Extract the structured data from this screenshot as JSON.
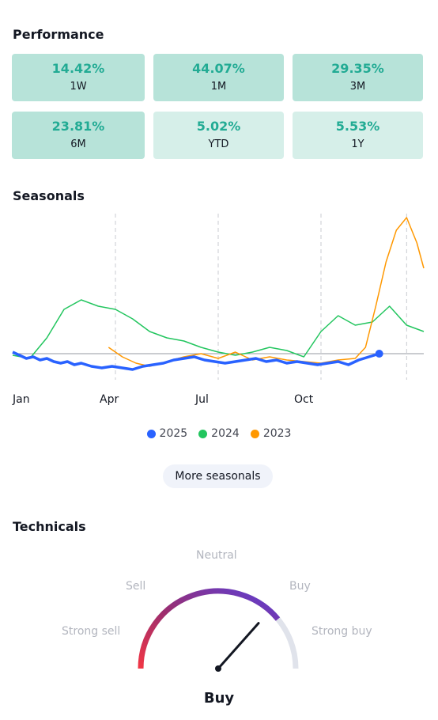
{
  "performance": {
    "title": "Performance",
    "cards": [
      {
        "value": "14.42%",
        "label": "1W",
        "tone": "dark"
      },
      {
        "value": "44.07%",
        "label": "1M",
        "tone": "dark"
      },
      {
        "value": "29.35%",
        "label": "3M",
        "tone": "dark"
      },
      {
        "value": "23.81%",
        "label": "6M",
        "tone": "dark"
      },
      {
        "value": "5.02%",
        "label": "YTD",
        "tone": "light"
      },
      {
        "value": "5.53%",
        "label": "1Y",
        "tone": "light"
      }
    ]
  },
  "seasonals": {
    "title": "Seasonals",
    "more_button": "More seasonals",
    "months": [
      "Jan",
      "Apr",
      "Jul",
      "Oct"
    ]
  },
  "chart_data": {
    "type": "line",
    "title": "",
    "xlabel": "",
    "ylabel": "",
    "x_ticks": [
      "Jan",
      "Apr",
      "Jul",
      "Oct"
    ],
    "grid": "vertical dashed at quarter boundaries",
    "baseline": 0,
    "series": [
      {
        "name": "2025",
        "color": "#2962ff",
        "x": [
          0,
          0.2,
          0.4,
          0.6,
          0.8,
          1.0,
          1.2,
          1.4,
          1.6,
          1.8,
          2.0,
          2.3,
          2.6,
          2.9,
          3.2,
          3.5,
          3.8,
          4.1,
          4.4,
          4.7,
          5.0,
          5.3,
          5.6,
          5.9,
          6.2,
          6.5,
          6.8,
          7.1,
          7.4,
          7.7,
          8.0,
          8.3,
          8.6,
          8.9,
          9.2,
          9.5,
          9.8,
          10.1,
          10.4,
          10.7
        ],
        "y": [
          1,
          -1,
          -3,
          -2,
          -4,
          -3,
          -5,
          -6,
          -5,
          -7,
          -6,
          -8,
          -9,
          -8,
          -9,
          -10,
          -8,
          -7,
          -6,
          -4,
          -3,
          -2,
          -4,
          -5,
          -6,
          -5,
          -4,
          -3,
          -5,
          -4,
          -6,
          -5,
          -6,
          -7,
          -6,
          -5,
          -7,
          -4,
          -2,
          0
        ]
      },
      {
        "name": "2024",
        "color": "#22c55e",
        "x": [
          0,
          0.5,
          1.0,
          1.5,
          2.0,
          2.5,
          3.0,
          3.5,
          4.0,
          4.5,
          5.0,
          5.5,
          6.0,
          6.5,
          7.0,
          7.5,
          8.0,
          8.5,
          9.0,
          9.5,
          10.0,
          10.5,
          11.0,
          11.5,
          12.0
        ],
        "y": [
          -1,
          -3,
          10,
          28,
          34,
          30,
          28,
          22,
          14,
          10,
          8,
          4,
          1,
          -1,
          1,
          4,
          2,
          -2,
          14,
          24,
          18,
          20,
          30,
          18,
          14
        ]
      },
      {
        "name": "2023",
        "color": "#ff9800",
        "x": [
          2.8,
          3.2,
          3.6,
          4.0,
          4.5,
          5.0,
          5.5,
          6.0,
          6.5,
          7.0,
          7.5,
          8.0,
          8.5,
          9.0,
          9.5,
          10.0,
          10.3,
          10.6,
          10.9,
          11.2,
          11.5,
          11.8,
          12.0
        ],
        "y": [
          4,
          -2,
          -6,
          -8,
          -5,
          -2,
          0,
          -3,
          1,
          -4,
          -2,
          -4,
          -5,
          -6,
          -4,
          -3,
          4,
          30,
          58,
          78,
          86,
          70,
          54
        ]
      }
    ]
  },
  "technicals": {
    "title": "Technicals",
    "labels": {
      "strong_sell": "Strong sell",
      "sell": "Sell",
      "neutral": "Neutral",
      "buy": "Buy",
      "strong_buy": "Strong buy"
    },
    "result": "Buy",
    "needle_position": 0.78
  },
  "colors": {
    "positive": "#22ab94",
    "card_dark": "#b7e3d9",
    "card_light": "#d6efe9"
  }
}
